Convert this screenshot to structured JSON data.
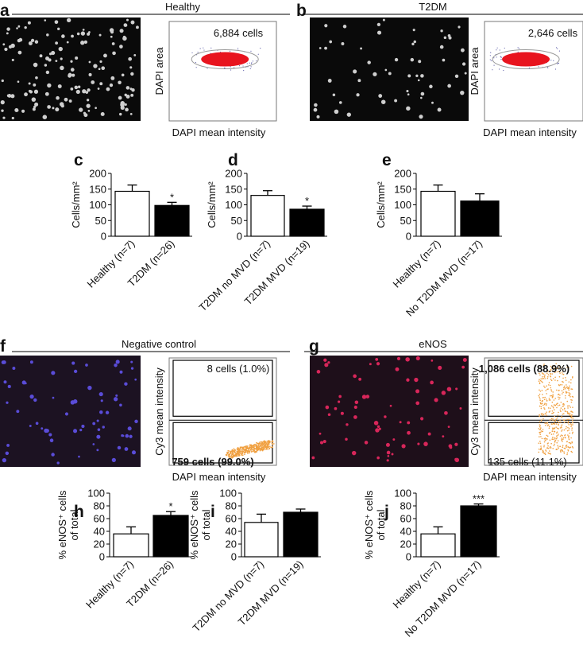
{
  "figure_panels": [
    {
      "letter": "a",
      "title": "Healthy",
      "x_label": "DAPI mean intensity",
      "y_label": "DAPI area",
      "gates": [
        "6,884 cells"
      ]
    },
    {
      "letter": "b",
      "title": "T2DM",
      "x_label": "DAPI mean intensity",
      "y_label": "DAPI area",
      "gates": [
        "2,646 cells"
      ]
    },
    {
      "letter": "f",
      "title": "Negative control",
      "x_label": "DAPI mean intensity",
      "y_label": "Cy3 mean intensity",
      "gates": [
        "8 cells (1.0%)",
        "759 cells (99.0%)"
      ]
    },
    {
      "letter": "g",
      "title": "eNOS",
      "x_label": "DAPI mean intensity",
      "y_label": "Cy3 mean intensity",
      "gates": [
        "1,086 cells (88.9%)",
        "135 cells (11.1%)"
      ]
    }
  ],
  "chart_data": [
    {
      "type": "bar",
      "panel": "c",
      "ylabel": [
        "Cells/mm²"
      ],
      "categories": [
        "Healthy (n=7)",
        "T2DM (n=26)"
      ],
      "values": [
        143,
        98
      ],
      "errors": [
        20,
        10
      ],
      "significance": [
        null,
        "*"
      ],
      "colors": [
        "#ffffff",
        "#000000"
      ],
      "ylim": [
        0,
        200
      ],
      "yticks": [
        0,
        50,
        100,
        150,
        200
      ]
    },
    {
      "type": "bar",
      "panel": "d",
      "ylabel": [
        "Cells/mm²"
      ],
      "categories": [
        "T2DM no MVD (n=7)",
        "T2DM MVD (n=19)"
      ],
      "values": [
        130,
        86
      ],
      "errors": [
        15,
        10
      ],
      "significance": [
        null,
        "*"
      ],
      "colors": [
        "#ffffff",
        "#000000"
      ],
      "ylim": [
        0,
        200
      ],
      "yticks": [
        0,
        50,
        100,
        150,
        200
      ]
    },
    {
      "type": "bar",
      "panel": "e",
      "ylabel": [
        "Cells/mm²"
      ],
      "categories": [
        "Healthy (n=7)",
        "No T2DM MVD (n=17)"
      ],
      "values": [
        143,
        112
      ],
      "errors": [
        20,
        23
      ],
      "significance": [
        null,
        null
      ],
      "colors": [
        "#ffffff",
        "#000000"
      ],
      "ylim": [
        0,
        200
      ],
      "yticks": [
        0,
        50,
        100,
        150,
        200
      ]
    },
    {
      "type": "bar",
      "panel": "h",
      "ylabel": [
        "% eNOS⁺ cells",
        "of total"
      ],
      "categories": [
        "Healthy (n=7)",
        "T2DM (n=26)"
      ],
      "values": [
        36,
        65
      ],
      "errors": [
        11,
        6
      ],
      "significance": [
        null,
        "*"
      ],
      "colors": [
        "#ffffff",
        "#000000"
      ],
      "ylim": [
        0,
        100
      ],
      "yticks": [
        0,
        20,
        40,
        60,
        80,
        100
      ]
    },
    {
      "type": "bar",
      "panel": "i",
      "ylabel": [
        "% eNOS⁺ cells",
        "of total"
      ],
      "categories": [
        "T2DM no MVD (n=7)",
        "T2DM MVD (n=19)"
      ],
      "values": [
        54,
        70
      ],
      "errors": [
        13,
        5
      ],
      "significance": [
        null,
        null
      ],
      "colors": [
        "#ffffff",
        "#000000"
      ],
      "ylim": [
        0,
        100
      ],
      "yticks": [
        0,
        20,
        40,
        60,
        80,
        100
      ]
    },
    {
      "type": "bar",
      "panel": "j",
      "ylabel": [
        "% eNOS⁺ cells",
        "of total"
      ],
      "categories": [
        "Healthy (n=7)",
        "No T2DM MVD (n=17)"
      ],
      "values": [
        36,
        80
      ],
      "errors": [
        11,
        3
      ],
      "significance": [
        null,
        "***"
      ],
      "colors": [
        "#ffffff",
        "#000000"
      ],
      "ylim": [
        0,
        100
      ],
      "yticks": [
        0,
        20,
        40,
        60,
        80,
        100
      ]
    }
  ]
}
